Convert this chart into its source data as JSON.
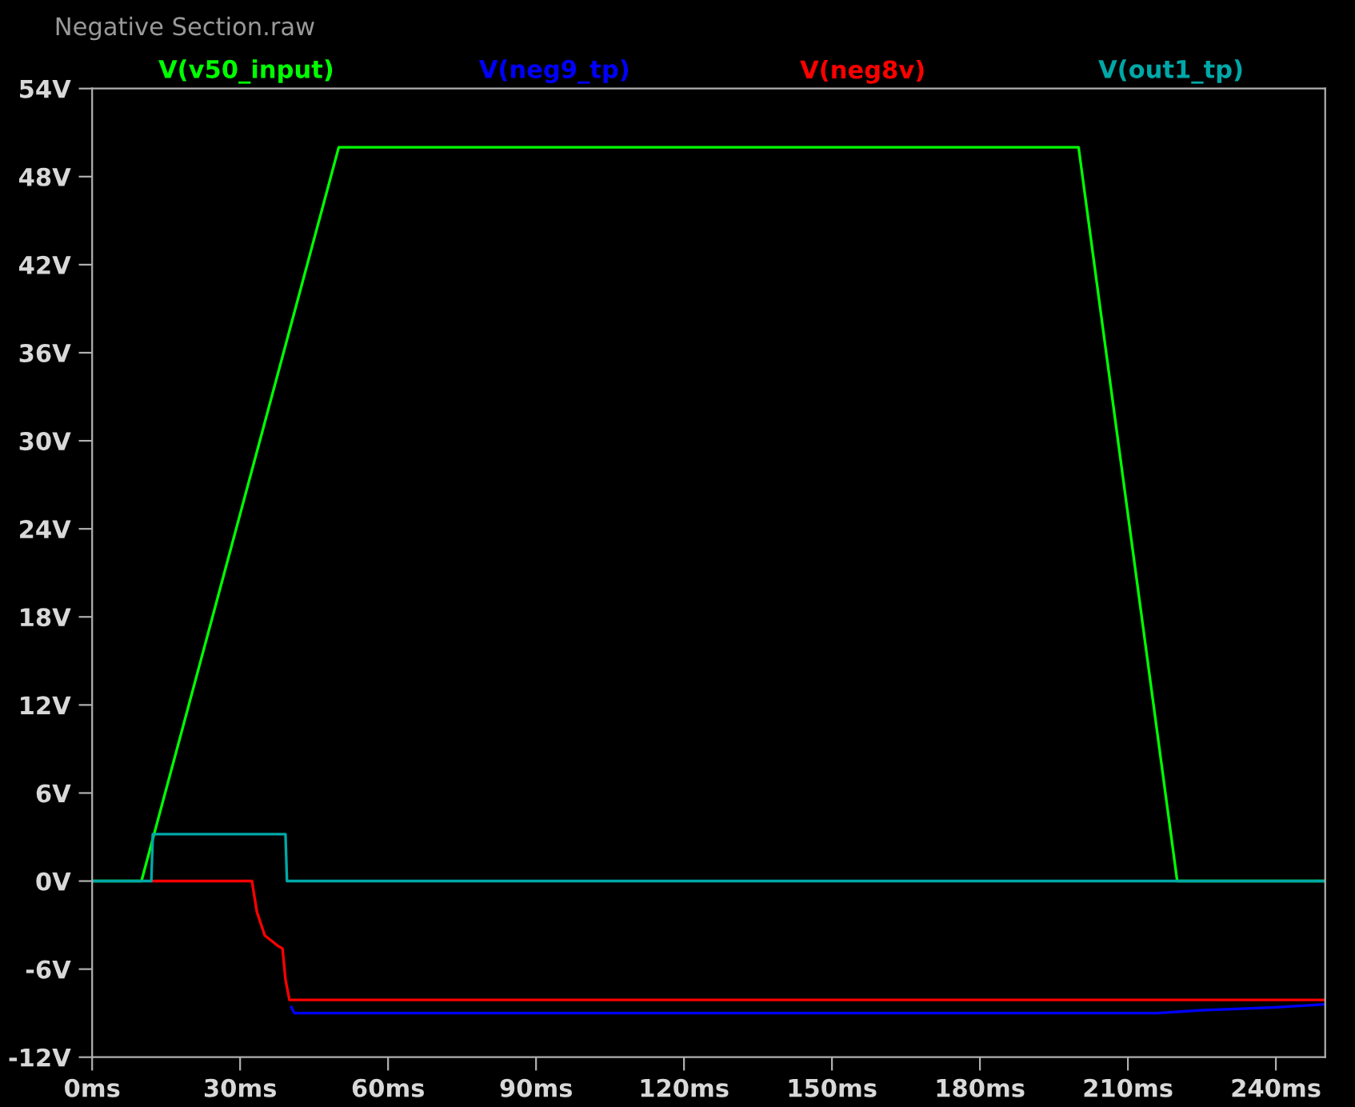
{
  "chart_data": {
    "type": "line",
    "title": "Negative Section.raw",
    "xlim": [
      0,
      250
    ],
    "ylim": [
      -12,
      54
    ],
    "xticks": [
      {
        "value": 0,
        "label": "0ms"
      },
      {
        "value": 30,
        "label": "30ms"
      },
      {
        "value": 60,
        "label": "60ms"
      },
      {
        "value": 90,
        "label": "90ms"
      },
      {
        "value": 120,
        "label": "120ms"
      },
      {
        "value": 150,
        "label": "150ms"
      },
      {
        "value": 180,
        "label": "180ms"
      },
      {
        "value": 210,
        "label": "210ms"
      },
      {
        "value": 240,
        "label": "240ms"
      }
    ],
    "yticks": [
      {
        "value": -12,
        "label": "-12V"
      },
      {
        "value": -6,
        "label": "-6V"
      },
      {
        "value": 0,
        "label": "0V"
      },
      {
        "value": 6,
        "label": "6V"
      },
      {
        "value": 12,
        "label": "12V"
      },
      {
        "value": 18,
        "label": "18V"
      },
      {
        "value": 24,
        "label": "24V"
      },
      {
        "value": 30,
        "label": "30V"
      },
      {
        "value": 36,
        "label": "36V"
      },
      {
        "value": 42,
        "label": "42V"
      },
      {
        "value": 48,
        "label": "48V"
      },
      {
        "value": 54,
        "label": "54V"
      }
    ],
    "grid": false,
    "legend": "top",
    "marker": "none",
    "line_style": "solid",
    "series": [
      {
        "name": "V(v50_input)",
        "color": "#00ff00",
        "x": [
          0,
          10,
          50,
          200,
          220,
          250
        ],
        "values": [
          0,
          0,
          50,
          50,
          0,
          0
        ]
      },
      {
        "name": "V(neg9_tp)",
        "color": "#0000ff",
        "x": [
          40.4,
          41,
          216,
          225,
          233,
          240,
          250
        ],
        "values": [
          -8.6,
          -9.0,
          -9.0,
          -8.8,
          -8.7,
          -8.6,
          -8.4
        ]
      },
      {
        "name": "V(neg8v)",
        "color": "#ff0000",
        "x": [
          12,
          32.4,
          33.4,
          35,
          37.6,
          38.6,
          39.2,
          40,
          250
        ],
        "values": [
          0,
          0,
          -2.1,
          -3.7,
          -4.4,
          -4.6,
          -6.7,
          -8.1,
          -8.1
        ]
      },
      {
        "name": "V(out1_tp)",
        "color": "#00a8a8",
        "x": [
          0,
          12,
          12.3,
          39.2,
          39.5,
          250
        ],
        "values": [
          0,
          0,
          3.2,
          3.2,
          0,
          0
        ]
      }
    ]
  }
}
